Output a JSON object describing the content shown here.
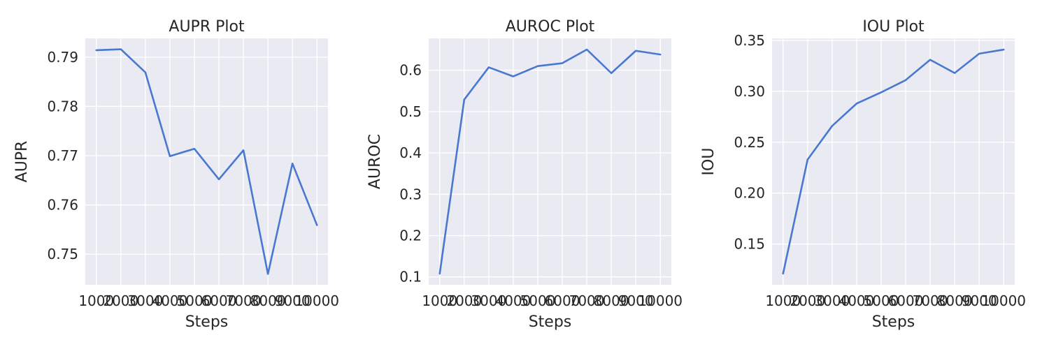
{
  "chart_data": [
    {
      "type": "line",
      "title": "AUPR Plot",
      "xlabel": "Steps",
      "ylabel": "AUPR",
      "grid": true,
      "x": [
        1000,
        2000,
        3000,
        4000,
        5000,
        6000,
        7000,
        8000,
        9000,
        10000
      ],
      "series": [
        {
          "values": [
            0.7914,
            0.7916,
            0.7869,
            0.7699,
            0.7714,
            0.7652,
            0.7711,
            0.746,
            0.7684,
            0.7559
          ]
        }
      ],
      "xticks": [
        "1000",
        "2000",
        "3000",
        "4000",
        "5000",
        "6000",
        "7000",
        "8000",
        "9000",
        "10000"
      ],
      "yticks": [
        "0.75",
        "0.76",
        "0.77",
        "0.78",
        "0.79"
      ],
      "ytick_values": [
        0.75,
        0.76,
        0.77,
        0.78,
        0.79
      ],
      "xlim": [
        550,
        10450
      ],
      "ylim": [
        0.7438,
        0.7938
      ],
      "color": "#4878cf"
    },
    {
      "type": "line",
      "title": "AUROC Plot",
      "xlabel": "Steps",
      "ylabel": "AUROC",
      "grid": true,
      "x": [
        1000,
        2000,
        3000,
        4000,
        5000,
        6000,
        7000,
        8000,
        9000,
        10000
      ],
      "series": [
        {
          "values": [
            0.108,
            0.529,
            0.607,
            0.585,
            0.61,
            0.617,
            0.65,
            0.593,
            0.647,
            0.638
          ]
        }
      ],
      "xticks": [
        "1000",
        "2000",
        "3000",
        "4000",
        "5000",
        "6000",
        "7000",
        "8000",
        "9000",
        "10000"
      ],
      "yticks": [
        "0.1",
        "0.2",
        "0.3",
        "0.4",
        "0.5",
        "0.6"
      ],
      "ytick_values": [
        0.1,
        0.2,
        0.3,
        0.4,
        0.5,
        0.6
      ],
      "xlim": [
        550,
        10450
      ],
      "ylim": [
        0.081,
        0.677
      ],
      "color": "#4878cf"
    },
    {
      "type": "line",
      "title": "IOU Plot",
      "xlabel": "Steps",
      "ylabel": "IOU",
      "grid": true,
      "x": [
        1000,
        2000,
        3000,
        4000,
        5000,
        6000,
        7000,
        8000,
        9000,
        10000
      ],
      "series": [
        {
          "values": [
            0.121,
            0.233,
            0.266,
            0.288,
            0.299,
            0.311,
            0.331,
            0.318,
            0.337,
            0.341
          ]
        }
      ],
      "xticks": [
        "1000",
        "2000",
        "3000",
        "4000",
        "5000",
        "6000",
        "7000",
        "8000",
        "9000",
        "10000"
      ],
      "yticks": [
        "0.15",
        "0.20",
        "0.25",
        "0.30",
        "0.35"
      ],
      "ytick_values": [
        0.15,
        0.2,
        0.25,
        0.3,
        0.35
      ],
      "xlim": [
        550,
        10450
      ],
      "ylim": [
        0.11,
        0.352
      ],
      "color": "#4878cf"
    }
  ]
}
